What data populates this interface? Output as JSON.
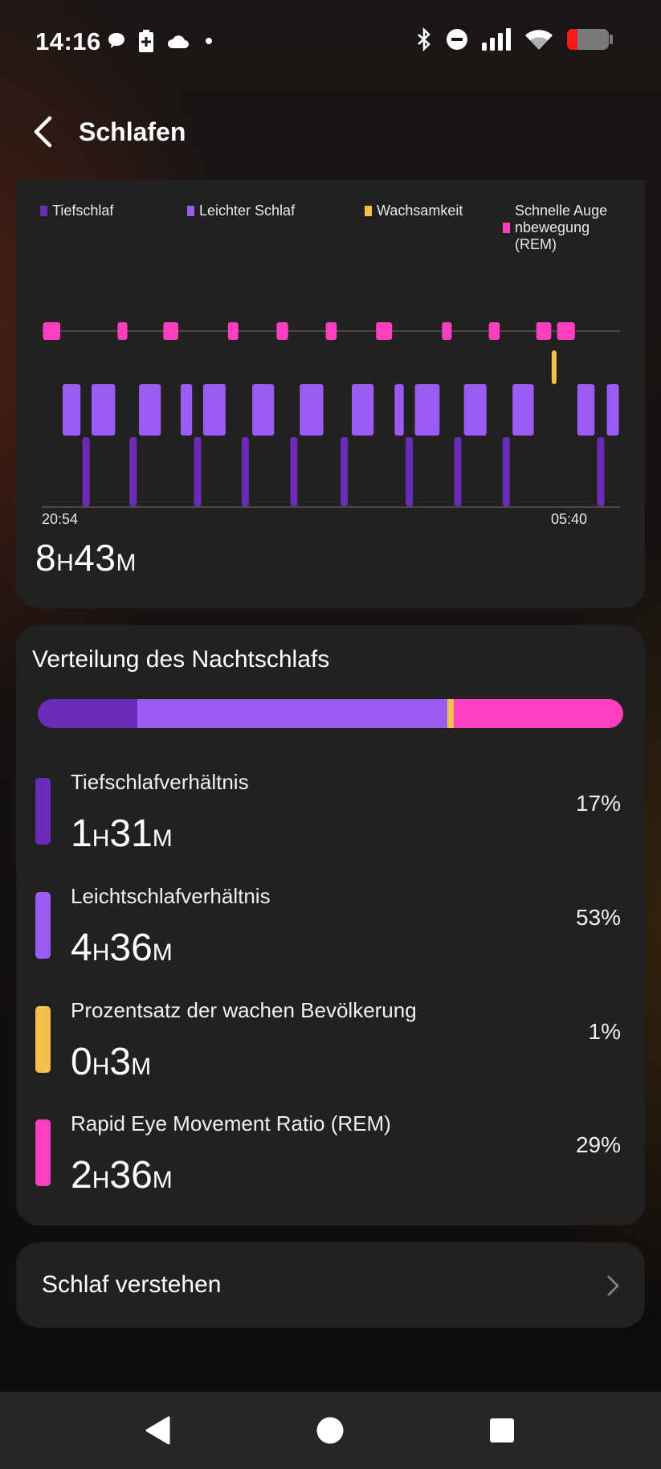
{
  "status_bar": {
    "time": "14:16",
    "left_icons": [
      "chat-bubble-icon",
      "battery-saver-icon",
      "cloud-icon",
      "dot-icon"
    ],
    "right_icons": [
      "bluetooth-icon",
      "do-not-disturb-icon",
      "signal-icon",
      "wifi-icon",
      "battery-icon"
    ]
  },
  "header": {
    "title": "Schlafen",
    "back_icon": "back-arrow-icon"
  },
  "colors": {
    "deep": "#6a2bb8",
    "light": "#9a5cf5",
    "awake": "#f5c04a",
    "rem": "#ff3fbf"
  },
  "chart_data": {
    "type": "hypnogram",
    "legend": [
      "Tiefschlaf",
      "Leichter Schlaf",
      "Wachsamkeit",
      "Schnelle Augenbewegung (REM)"
    ],
    "legend_display": {
      "deep": "Tiefschlaf",
      "light": "Leichter Schlaf",
      "awake": "Wachsamkeit",
      "rem_line1": "Schnelle Auge",
      "rem_line2": "nbewegung",
      "rem_line3": "(REM)"
    },
    "levels_top_to_bottom": [
      "rem",
      "awake",
      "light",
      "deep"
    ],
    "start_time": "20:54",
    "end_time": "05:40",
    "total": {
      "hours": "8",
      "minutes": "43",
      "h_unit": "H",
      "m_unit": "M"
    },
    "segments": [
      {
        "stage": "rem",
        "start": 0.0,
        "end": 0.034
      },
      {
        "stage": "light",
        "start": 0.034,
        "end": 0.069
      },
      {
        "stage": "deep",
        "start": 0.069,
        "end": 0.084
      },
      {
        "stage": "light",
        "start": 0.084,
        "end": 0.129
      },
      {
        "stage": "rem",
        "start": 0.129,
        "end": 0.15
      },
      {
        "stage": "deep",
        "start": 0.15,
        "end": 0.166
      },
      {
        "stage": "light",
        "start": 0.166,
        "end": 0.208
      },
      {
        "stage": "rem",
        "start": 0.208,
        "end": 0.238
      },
      {
        "stage": "light",
        "start": 0.238,
        "end": 0.262
      },
      {
        "stage": "deep",
        "start": 0.262,
        "end": 0.277
      },
      {
        "stage": "light",
        "start": 0.277,
        "end": 0.32
      },
      {
        "stage": "rem",
        "start": 0.32,
        "end": 0.342
      },
      {
        "stage": "deep",
        "start": 0.342,
        "end": 0.362
      },
      {
        "stage": "light",
        "start": 0.362,
        "end": 0.404
      },
      {
        "stage": "rem",
        "start": 0.404,
        "end": 0.428
      },
      {
        "stage": "deep",
        "start": 0.428,
        "end": 0.444
      },
      {
        "stage": "light",
        "start": 0.444,
        "end": 0.489
      },
      {
        "stage": "rem",
        "start": 0.489,
        "end": 0.512
      },
      {
        "stage": "deep",
        "start": 0.512,
        "end": 0.534
      },
      {
        "stage": "light",
        "start": 0.534,
        "end": 0.576
      },
      {
        "stage": "rem",
        "start": 0.576,
        "end": 0.608
      },
      {
        "stage": "light",
        "start": 0.608,
        "end": 0.628
      },
      {
        "stage": "deep",
        "start": 0.628,
        "end": 0.643
      },
      {
        "stage": "light",
        "start": 0.643,
        "end": 0.69
      },
      {
        "stage": "rem",
        "start": 0.69,
        "end": 0.711
      },
      {
        "stage": "deep",
        "start": 0.711,
        "end": 0.728
      },
      {
        "stage": "light",
        "start": 0.728,
        "end": 0.771
      },
      {
        "stage": "rem",
        "start": 0.771,
        "end": 0.794
      },
      {
        "stage": "deep",
        "start": 0.794,
        "end": 0.812
      },
      {
        "stage": "light",
        "start": 0.812,
        "end": 0.853
      },
      {
        "stage": "rem",
        "start": 0.853,
        "end": 0.883
      },
      {
        "stage": "awake",
        "start": 0.883,
        "end": 0.889
      },
      {
        "stage": "rem",
        "start": 0.889,
        "end": 0.924
      },
      {
        "stage": "light",
        "start": 0.924,
        "end": 0.958
      },
      {
        "stage": "deep",
        "start": 0.958,
        "end": 0.975
      },
      {
        "stage": "light",
        "start": 0.975,
        "end": 1.0
      }
    ]
  },
  "distribution": {
    "title": "Verteilung des Nachtschlafs",
    "bar": [
      {
        "stage": "deep",
        "percent": 17
      },
      {
        "stage": "light",
        "percent": 53
      },
      {
        "stage": "awake",
        "percent": 1
      },
      {
        "stage": "rem",
        "percent": 29
      }
    ],
    "items": [
      {
        "label": "Tiefschlafverhältnis",
        "hours": "1",
        "minutes": "31",
        "h_unit": "H",
        "m_unit": "M",
        "percent": "17%"
      },
      {
        "label": "Leichtschlafverhältnis",
        "hours": "4",
        "minutes": "36",
        "h_unit": "H",
        "m_unit": "M",
        "percent": "53%"
      },
      {
        "label": "Prozentsatz der wachen Bevölkerung",
        "hours": "0",
        "minutes": "3",
        "h_unit": "H",
        "m_unit": "M",
        "percent": "1%"
      },
      {
        "label": "Rapid Eye Movement Ratio (REM)",
        "hours": "2",
        "minutes": "36",
        "h_unit": "H",
        "m_unit": "M",
        "percent": "29%"
      }
    ]
  },
  "learn": {
    "label": "Schlaf verstehen",
    "icon": "chevron-right-icon"
  },
  "nav_bar": {
    "buttons": [
      "back-triangle-icon",
      "home-circle-icon",
      "recents-square-icon"
    ]
  }
}
